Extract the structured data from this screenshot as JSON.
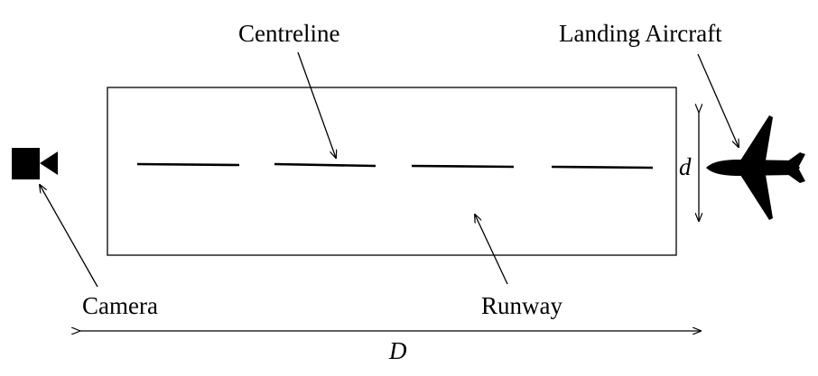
{
  "labels": {
    "centreline": "Centreline",
    "landing_aircraft": "Landing Aircraft",
    "camera": "Camera",
    "runway": "Runway",
    "runway_width": "d",
    "distance": "D"
  }
}
